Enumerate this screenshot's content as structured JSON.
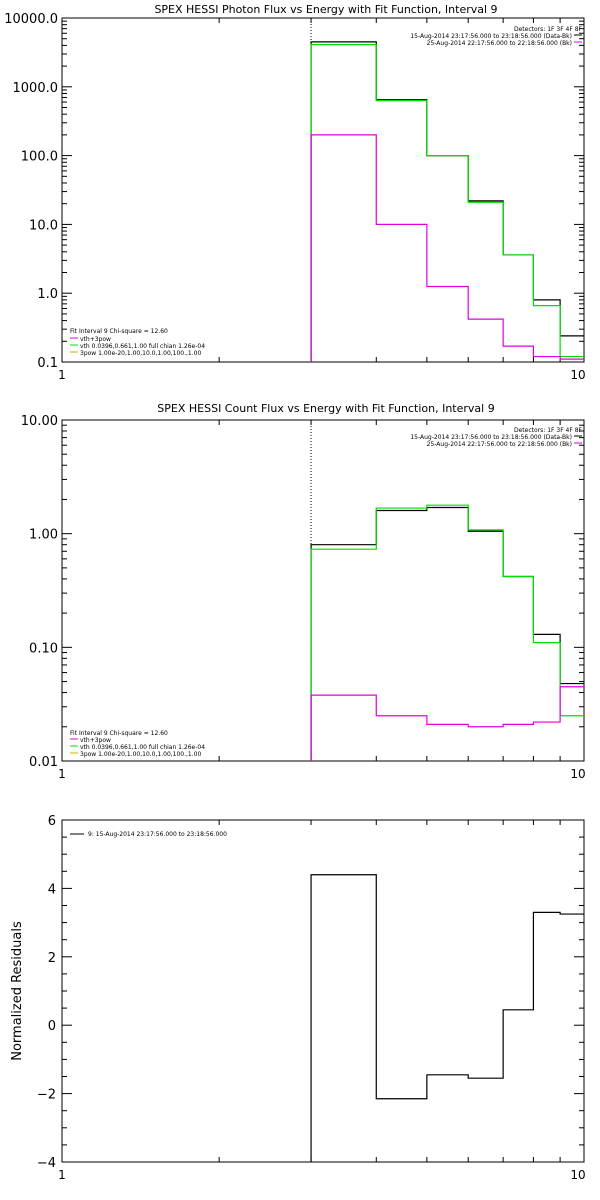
{
  "colors": {
    "data": "#000000",
    "background": "#e000e0",
    "fit": "#00dd00",
    "vth": "#00dd00",
    "pow": "#c8b400",
    "sum": "#e000e0"
  },
  "chart_data": [
    {
      "id": "photon",
      "type": "line",
      "title": "SPEX HESSI Photon Flux vs Energy with Fit Function, Interval 9",
      "xlabel": "",
      "ylabel": "",
      "xscale": "log",
      "yscale": "log",
      "xlim": [
        1,
        10
      ],
      "ylim": [
        0.1,
        10000
      ],
      "xticks": [
        "1",
        "10"
      ],
      "yticks": [
        "10000.0",
        "1000.0",
        "100.0",
        "10.0",
        "1.0",
        "0.1"
      ],
      "vline_x": 3,
      "info": [
        "Detectors: 1F 3F 4F 8F",
        "15-Aug-2014 23:17:56.000 to 23:18:56.000 (Data-Bk)",
        "25-Aug-2014 22:17:56.000 to 22:18:56.000 (Bk)"
      ],
      "legend": [
        "Fit Interval 9   Chi-square = 12.60",
        "vth+3pow",
        "vth 0.0396,0.661,1.00  full chian 1.26e-04",
        "3pow 1.00e-20,1.00,10.0,1.00,100.,1.00"
      ],
      "bin_edges": [
        3.0,
        4.0,
        5.0,
        6.0,
        7.0,
        8.0,
        9.0,
        10.0
      ],
      "series": [
        {
          "role": "data",
          "values": [
            4500,
            650,
            100,
            22,
            3.6,
            0.8,
            0.24
          ]
        },
        {
          "role": "fit",
          "values": [
            4100,
            630,
            100,
            21,
            3.6,
            0.66,
            0.12
          ]
        },
        {
          "role": "background",
          "values": [
            200,
            10,
            1.25,
            0.42,
            0.17,
            0.12,
            0.11
          ]
        }
      ]
    },
    {
      "id": "count",
      "type": "line",
      "title": "SPEX HESSI Count Flux vs Energy with Fit Function, Interval 9",
      "xlabel": "",
      "ylabel": "",
      "xscale": "log",
      "yscale": "log",
      "xlim": [
        1,
        10
      ],
      "ylim": [
        0.01,
        10
      ],
      "xticks": [
        "1",
        "10"
      ],
      "yticks": [
        "10.00",
        "1.00",
        "0.10",
        "0.01"
      ],
      "vline_x": 3,
      "info": [
        "Detectors: 1F 3F 4F 8F",
        "15-Aug-2014 23:17:56.000 to 23:18:56.000 (Data-Bk)",
        "25-Aug-2014 22:17:56.000 to 22:18:56.000 (Bk)"
      ],
      "legend": [
        "Fit Interval 9   Chi-square = 12.60",
        "vth+3pow",
        "vth 0.0396,0.661,1.00  full chian 1.26e-04",
        "3pow 1.00e-20,1.00,10.0,1.00,100.,1.00"
      ],
      "bin_edges": [
        3.0,
        4.0,
        5.0,
        6.0,
        7.0,
        8.0,
        9.0,
        10.0
      ],
      "series": [
        {
          "role": "data",
          "values": [
            0.8,
            1.6,
            1.7,
            1.05,
            0.42,
            0.13,
            0.048
          ]
        },
        {
          "role": "fit",
          "values": [
            0.73,
            1.68,
            1.78,
            1.08,
            0.42,
            0.11,
            0.025
          ]
        },
        {
          "role": "background",
          "values": [
            0.038,
            0.025,
            0.021,
            0.02,
            0.021,
            0.022,
            0.045
          ]
        }
      ]
    },
    {
      "id": "residuals",
      "type": "line",
      "title": "",
      "xlabel": "",
      "ylabel": "Normalized Residuals",
      "xscale": "log",
      "yscale": "linear",
      "xlim": [
        1,
        10
      ],
      "ylim": [
        -4,
        6
      ],
      "xticks": [
        "1",
        "10"
      ],
      "yticks": [
        "6",
        "4",
        "2",
        "0",
        "-2",
        "-4"
      ],
      "legend": [
        "9: 15-Aug-2014 23:17:56.000 to 23:18:56.000"
      ],
      "bin_edges": [
        3.0,
        4.0,
        5.0,
        6.0,
        7.0,
        8.0,
        9.0,
        10.0
      ],
      "series": [
        {
          "role": "data",
          "values": [
            4.4,
            -2.15,
            -1.45,
            -1.55,
            0.45,
            3.3,
            3.25
          ]
        }
      ]
    }
  ]
}
